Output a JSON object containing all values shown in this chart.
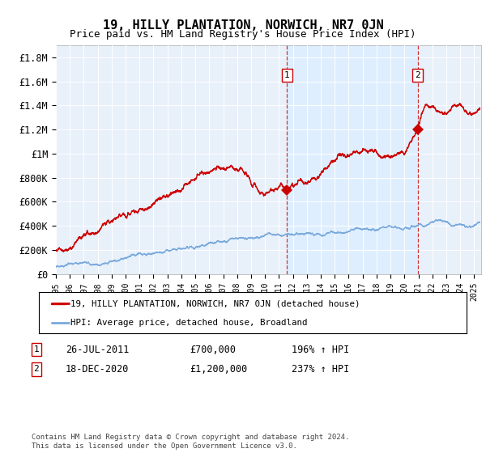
{
  "title": "19, HILLY PLANTATION, NORWICH, NR7 0JN",
  "subtitle": "Price paid vs. HM Land Registry's House Price Index (HPI)",
  "legend_line1": "19, HILLY PLANTATION, NORWICH, NR7 0JN (detached house)",
  "legend_line2": "HPI: Average price, detached house, Broadland",
  "annotation1": {
    "label": "1",
    "date": "26-JUL-2011",
    "price": "£700,000",
    "hpi": "196% ↑ HPI",
    "x_year": 2011.57,
    "y_val": 700000
  },
  "annotation2": {
    "label": "2",
    "date": "18-DEC-2020",
    "price": "£1,200,000",
    "hpi": "237% ↑ HPI",
    "x_year": 2020.96,
    "y_val": 1200000
  },
  "footer": "Contains HM Land Registry data © Crown copyright and database right 2024.\nThis data is licensed under the Open Government Licence v3.0.",
  "ylim": [
    0,
    1900000
  ],
  "yticks": [
    0,
    200000,
    400000,
    600000,
    800000,
    1000000,
    1200000,
    1400000,
    1600000,
    1800000
  ],
  "ytick_labels": [
    "£0",
    "£200K",
    "£400K",
    "£600K",
    "£800K",
    "£1M",
    "£1.2M",
    "£1.4M",
    "£1.6M",
    "£1.8M"
  ],
  "xlim_start": 1995.0,
  "xlim_end": 2025.5,
  "red_color": "#cc0000",
  "blue_color": "#7aaadd",
  "shade_color": "#ddeeff",
  "plot_bg": "#e8f0fa",
  "title_fontsize": 11,
  "subtitle_fontsize": 9,
  "seed": 17
}
